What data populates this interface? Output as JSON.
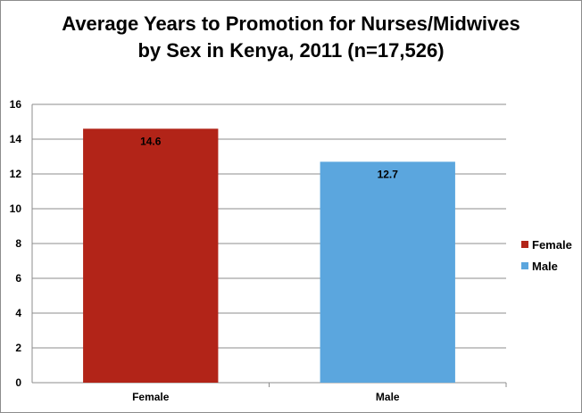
{
  "chart_data": {
    "type": "bar",
    "title_line1": "Average Years to Promotion for Nurses/Midwives",
    "title_line2": "by Sex in Kenya, 2011 (n=17,526)",
    "categories": [
      "Female",
      "Male"
    ],
    "values": [
      14.6,
      12.7
    ],
    "data_labels": [
      "14.6",
      "12.7"
    ],
    "colors": [
      "#b22418",
      "#5ba6de"
    ],
    "ylim": [
      0,
      16
    ],
    "yticks": [
      0,
      2,
      4,
      6,
      8,
      10,
      12,
      14,
      16
    ],
    "ytick_labels": [
      "0",
      "2",
      "4",
      "6",
      "8",
      "10",
      "12",
      "14",
      "16"
    ],
    "grid": true,
    "legend_position": "right",
    "legend": [
      {
        "label": "Female",
        "color": "#b22418"
      },
      {
        "label": "Male",
        "color": "#5ba6de"
      }
    ]
  }
}
